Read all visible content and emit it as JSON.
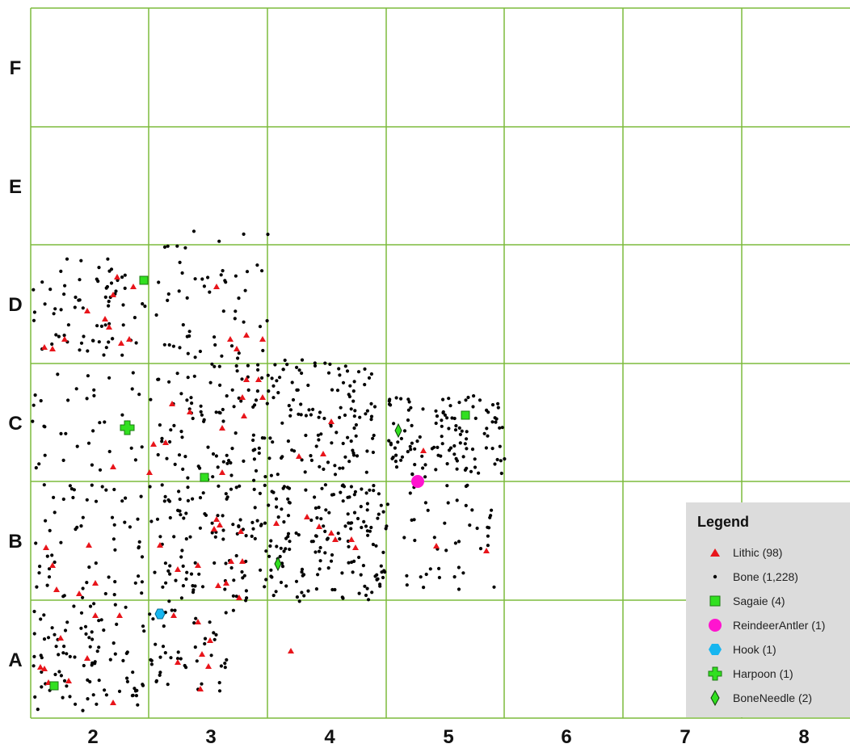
{
  "grid": {
    "columns": [
      "2",
      "3",
      "4",
      "5",
      "6",
      "7",
      "8"
    ],
    "rows": [
      "F",
      "E",
      "D",
      "C",
      "B",
      "A"
    ],
    "line_color": "#7dbb3d"
  },
  "legend": {
    "title": "Legend",
    "items": [
      {
        "key": "lithic",
        "label": "Lithic (98)",
        "color": "#e8151b",
        "icon": "triangle-icon"
      },
      {
        "key": "bone",
        "label": "Bone (1,228)",
        "color": "#000000",
        "icon": "dot-icon"
      },
      {
        "key": "sagaie",
        "label": "Sagaie (4)",
        "color": "#31e020",
        "icon": "square-icon"
      },
      {
        "key": "antler",
        "label": "ReindeerAntler (1)",
        "color": "#ff14cf",
        "icon": "circle-icon"
      },
      {
        "key": "hook",
        "label": "Hook (1)",
        "color": "#17b6f0",
        "icon": "hexagon-icon"
      },
      {
        "key": "harpoon",
        "label": "Harpoon (1)",
        "color": "#31e020",
        "icon": "plus-icon"
      },
      {
        "key": "needle",
        "label": "BoneNeedle (2)",
        "color": "#31e020",
        "icon": "diamond-icon"
      }
    ]
  }
}
